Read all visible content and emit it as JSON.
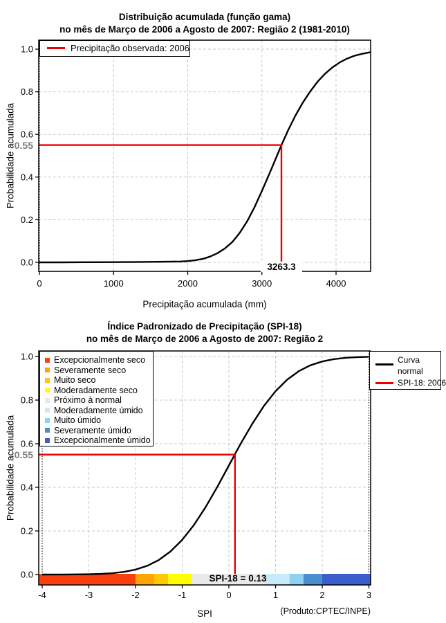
{
  "page": {
    "background": "#FFFFFF"
  },
  "colors": {
    "highlight_red": "#EE0000",
    "grid": "#C9C9C9",
    "curve": "#000000",
    "muted_label": "#7D7D7D"
  },
  "chart1": {
    "title_line1": "Distribuição acumulada (função gama)",
    "title_line2": "no mês de Março de 2006 a Agosto de 2007: Região 2 (1981-2010)",
    "ylabel": "Probabilidade acumulada",
    "xlabel": "Precipitação acumulada (mm)",
    "legend": {
      "label": "Precipitação observada: 2006"
    },
    "highlight": {
      "y_label": "0.55",
      "x_label": "3263.3"
    }
  },
  "chart2": {
    "title_line1": "Índice Padronizado de Precipitação (SPI-18)",
    "title_line2": "no mês de Março de 2006 a Agosto de 2007: Região 2",
    "ylabel": "Probabilidade acumulada",
    "xlabel": "SPI",
    "credit": "(Produto:CPTEC/INPE)",
    "legend_lines": {
      "line1": "Curva",
      "line2": "normal",
      "line3": "SPI-18: 2006"
    },
    "highlight": {
      "y_label": "0.55",
      "annotation": "SPI-18 = 0.13"
    }
  },
  "chart_data": [
    {
      "type": "line",
      "title": "Distribuição acumulada (função gama) no mês de Março de 2006 a Agosto de 2007: Região 2 (1981-2010)",
      "xlabel": "Precipitação acumulada (mm)",
      "ylabel": "Probabilidade acumulada",
      "xlim": [
        0,
        4465
      ],
      "ylim": [
        0,
        1
      ],
      "x_ticks": [
        0,
        1000,
        2000,
        3000,
        4000
      ],
      "y_ticks": [
        0.0,
        0.2,
        0.4,
        0.6,
        0.8,
        1.0
      ],
      "grid": true,
      "legend_position": "top-left",
      "series": [
        {
          "name": "Distribuição acumulada (função gama)",
          "color": "#000000",
          "points": [
            [
              0,
              0.0
            ],
            [
              300,
              0.0
            ],
            [
              600,
              0.0005
            ],
            [
              1000,
              0.001
            ],
            [
              1400,
              0.002
            ],
            [
              1700,
              0.003
            ],
            [
              1900,
              0.004
            ],
            [
              2000,
              0.006
            ],
            [
              2100,
              0.01
            ],
            [
              2200,
              0.016
            ],
            [
              2300,
              0.027
            ],
            [
              2400,
              0.043
            ],
            [
              2500,
              0.065
            ],
            [
              2600,
              0.095
            ],
            [
              2700,
              0.138
            ],
            [
              2800,
              0.192
            ],
            [
              2900,
              0.258
            ],
            [
              3000,
              0.335
            ],
            [
              3100,
              0.415
            ],
            [
              3200,
              0.497
            ],
            [
              3263.3,
              0.55
            ],
            [
              3350,
              0.617
            ],
            [
              3450,
              0.687
            ],
            [
              3550,
              0.748
            ],
            [
              3650,
              0.801
            ],
            [
              3750,
              0.847
            ],
            [
              3850,
              0.884
            ],
            [
              3950,
              0.914
            ],
            [
              4050,
              0.938
            ],
            [
              4150,
              0.956
            ],
            [
              4250,
              0.969
            ],
            [
              4350,
              0.978
            ],
            [
              4465,
              0.986
            ]
          ]
        }
      ],
      "highlight": {
        "name": "Precipitação observada: 2006",
        "color": "#EE0000",
        "x": 3263.3,
        "y": 0.55
      }
    },
    {
      "type": "line",
      "title": "Índice Padronizado de Precipitação (SPI-18) no mês de Março de 2006 a Agosto de 2007: Região 2",
      "xlabel": "SPI",
      "ylabel": "Probabilidade acumulada",
      "xlim": [
        -4,
        3
      ],
      "ylim": [
        0,
        1
      ],
      "x_ticks": [
        -4,
        -3,
        -2,
        -1,
        0,
        1,
        2,
        3
      ],
      "y_ticks": [
        0.0,
        0.2,
        0.4,
        0.6,
        0.8,
        1.0
      ],
      "grid": true,
      "series": [
        {
          "name": "Curva normal",
          "color": "#000000",
          "points": [
            [
              -4,
              0.0001
            ],
            [
              -3.5,
              0.0003
            ],
            [
              -3,
              0.0013
            ],
            [
              -2.75,
              0.003
            ],
            [
              -2.5,
              0.006
            ],
            [
              -2.25,
              0.012
            ],
            [
              -2,
              0.023
            ],
            [
              -1.75,
              0.04
            ],
            [
              -1.5,
              0.067
            ],
            [
              -1.25,
              0.106
            ],
            [
              -1,
              0.159
            ],
            [
              -0.75,
              0.227
            ],
            [
              -0.5,
              0.309
            ],
            [
              -0.25,
              0.401
            ],
            [
              0,
              0.5
            ],
            [
              0.13,
              0.552
            ],
            [
              0.25,
              0.599
            ],
            [
              0.5,
              0.691
            ],
            [
              0.75,
              0.773
            ],
            [
              1,
              0.841
            ],
            [
              1.25,
              0.894
            ],
            [
              1.5,
              0.933
            ],
            [
              1.75,
              0.96
            ],
            [
              2,
              0.977
            ],
            [
              2.25,
              0.988
            ],
            [
              2.5,
              0.994
            ],
            [
              2.75,
              0.997
            ],
            [
              3,
              0.9987
            ]
          ]
        }
      ],
      "highlight": {
        "name": "SPI-18: 2006",
        "color": "#EE0000",
        "x": 0.13,
        "y": 0.55
      },
      "colorbar": {
        "boundaries": [
          -4,
          -2,
          -1.6,
          -1.3,
          -0.8,
          0.8,
          1.3,
          1.6,
          2,
          3
        ],
        "colors": [
          "#FB3F0F",
          "#FFA505",
          "#FFC805",
          "#FFFF00",
          "#E9E9E9",
          "#C8EAFB",
          "#8DD2F2",
          "#4B90CE",
          "#3A5FCD"
        ],
        "labels": [
          "Excepcionalmente seco",
          "Severamente seco",
          "Muito seco",
          "Moderadamente seco",
          "Próximo à normal",
          "Moderadamente úmido",
          "Muito úmido",
          "Severamente úmido",
          "Excepcionalmente úmido"
        ]
      }
    }
  ]
}
